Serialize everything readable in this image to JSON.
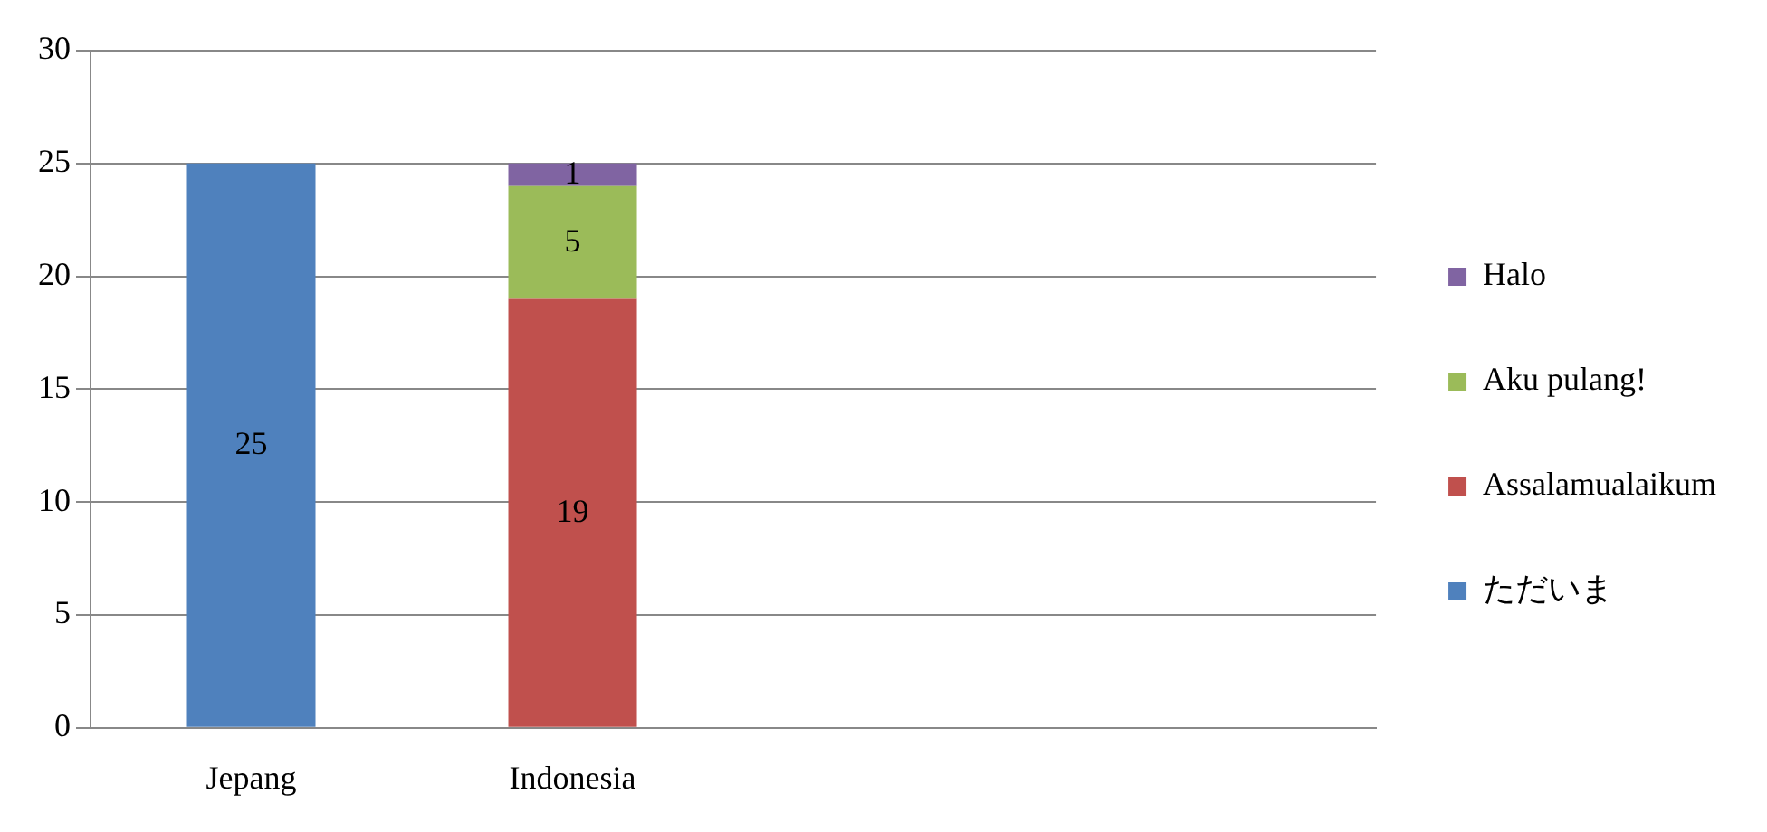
{
  "chart_data": {
    "type": "bar",
    "stacked": true,
    "categories": [
      "Jepang",
      "Indonesia",
      null,
      null
    ],
    "series": [
      {
        "name": "ただいま",
        "color": "#4f81bd",
        "values": [
          25,
          null,
          null,
          null
        ]
      },
      {
        "name": "Assalamualaikum",
        "color": "#c0504d",
        "values": [
          null,
          19,
          null,
          null
        ]
      },
      {
        "name": "Aku pulang!",
        "color": "#9bbb59",
        "values": [
          null,
          5,
          null,
          null
        ]
      },
      {
        "name": "Halo",
        "color": "#8064a2",
        "values": [
          null,
          1,
          null,
          null
        ]
      }
    ],
    "ylim": [
      0,
      30
    ],
    "yticks": [
      0,
      5,
      10,
      15,
      20,
      25,
      30
    ],
    "grid": "y",
    "legend": "right",
    "data_labels": true
  }
}
